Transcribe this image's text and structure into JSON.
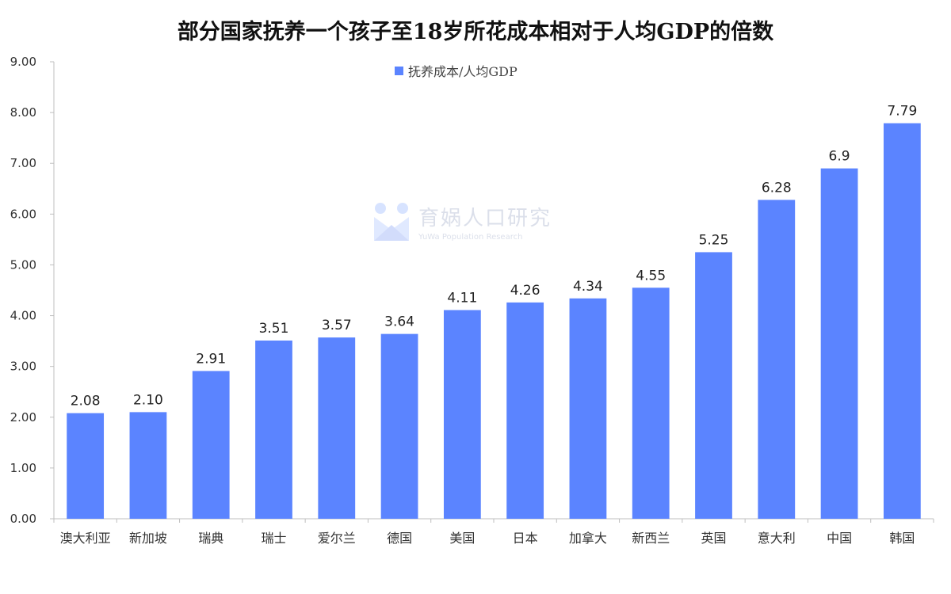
{
  "chart_data": {
    "type": "bar",
    "title": "部分国家抚养一个孩子至18岁所花成本相对于人均GDP的倍数",
    "categories": [
      "澳大利亚",
      "新加坡",
      "瑞典",
      "瑞士",
      "爱尔兰",
      "德国",
      "美国",
      "日本",
      "加拿大",
      "新西兰",
      "英国",
      "意大利",
      "中国",
      "韩国"
    ],
    "series": [
      {
        "name": "抚养成本/人均GDP",
        "values": [
          2.08,
          2.1,
          2.91,
          3.51,
          3.57,
          3.64,
          4.11,
          4.26,
          4.34,
          4.55,
          5.25,
          6.28,
          6.9,
          7.79
        ],
        "labels": [
          "2.08",
          "2.10",
          "2.91",
          "3.51",
          "3.57",
          "3.64",
          "4.11",
          "4.26",
          "4.34",
          "4.55",
          "5.25",
          "6.28",
          "6.9",
          "7.79"
        ]
      }
    ],
    "ylim": [
      0,
      9
    ],
    "yticks": [
      "0.00",
      "1.00",
      "2.00",
      "3.00",
      "4.00",
      "5.00",
      "6.00",
      "7.00",
      "8.00",
      "9.00"
    ],
    "grid": false,
    "legend_position": "top-center",
    "bar_color": "#5b84ff"
  },
  "watermark": {
    "text": "育娲人口研究",
    "subtext": "YuWa Population Research"
  }
}
